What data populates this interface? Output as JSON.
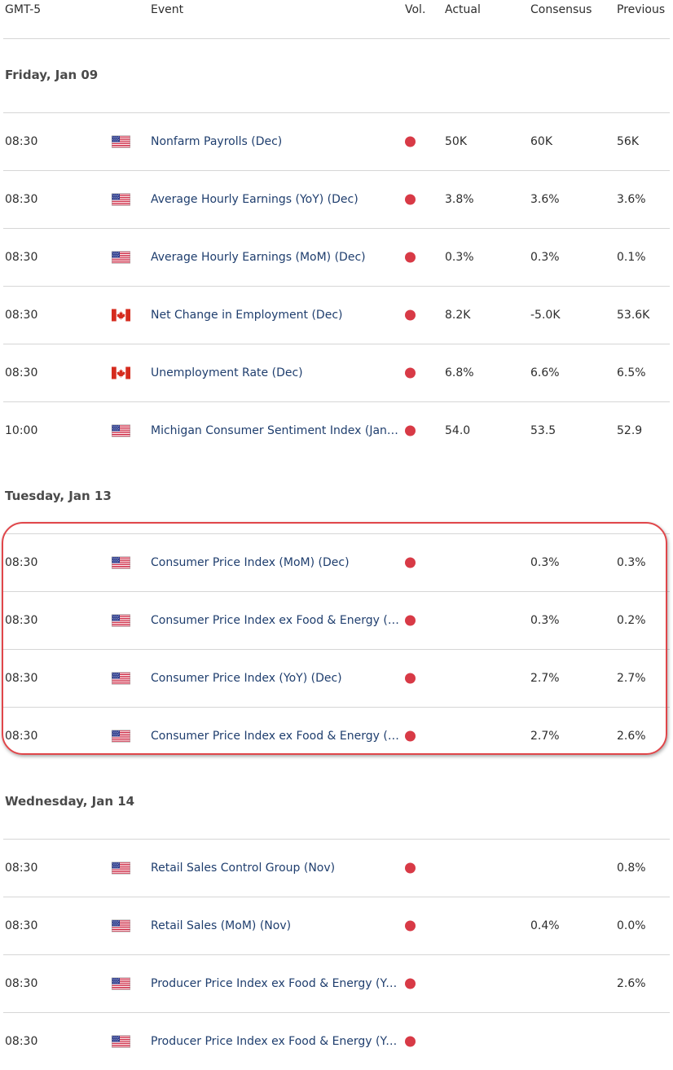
{
  "header": {
    "timezone": "GMT-5",
    "event": "Event",
    "vol": "Vol.",
    "actual": "Actual",
    "consensus": "Consensus",
    "previous": "Previous"
  },
  "colors": {
    "dot": "#d83a46",
    "event_link": "#1f3e6e",
    "highlight": "#e0464a"
  },
  "days": [
    {
      "label": "Friday, Jan 09",
      "rows": [
        {
          "time": "08:30",
          "flag": "us-flag-icon",
          "event": "Nonfarm Payrolls (Dec)",
          "actual": "50K",
          "consensus": "60K",
          "previous": "56K"
        },
        {
          "time": "08:30",
          "flag": "us-flag-icon",
          "event": "Average Hourly Earnings (YoY) (Dec)",
          "actual": "3.8%",
          "consensus": "3.6%",
          "previous": "3.6%"
        },
        {
          "time": "08:30",
          "flag": "us-flag-icon",
          "event": "Average Hourly Earnings (MoM) (Dec)",
          "actual": "0.3%",
          "consensus": "0.3%",
          "previous": "0.1%"
        },
        {
          "time": "08:30",
          "flag": "ca-flag-icon",
          "event": "Net Change in Employment (Dec)",
          "actual": "8.2K",
          "consensus": "-5.0K",
          "previous": "53.6K"
        },
        {
          "time": "08:30",
          "flag": "ca-flag-icon",
          "event": "Unemployment Rate (Dec)",
          "actual": "6.8%",
          "consensus": "6.6%",
          "previous": "6.5%"
        },
        {
          "time": "10:00",
          "flag": "us-flag-icon",
          "event": "Michigan Consumer Sentiment Index (Jan)...",
          "actual": "54.0",
          "consensus": "53.5",
          "previous": "52.9"
        }
      ]
    },
    {
      "label": "Tuesday, Jan 13",
      "rows": [
        {
          "time": "08:30",
          "flag": "us-flag-icon",
          "event": "Consumer Price Index (MoM) (Dec)",
          "actual": "",
          "consensus": "0.3%",
          "previous": "0.3%"
        },
        {
          "time": "08:30",
          "flag": "us-flag-icon",
          "event": "Consumer Price Index ex Food & Energy (M...",
          "actual": "",
          "consensus": "0.3%",
          "previous": "0.2%"
        },
        {
          "time": "08:30",
          "flag": "us-flag-icon",
          "event": "Consumer Price Index (YoY) (Dec)",
          "actual": "",
          "consensus": "2.7%",
          "previous": "2.7%"
        },
        {
          "time": "08:30",
          "flag": "us-flag-icon",
          "event": "Consumer Price Index ex Food & Energy (Yo...",
          "actual": "",
          "consensus": "2.7%",
          "previous": "2.6%"
        }
      ]
    },
    {
      "label": "Wednesday, Jan 14",
      "rows": [
        {
          "time": "08:30",
          "flag": "us-flag-icon",
          "event": "Retail Sales Control Group (Nov)",
          "actual": "",
          "consensus": "",
          "previous": "0.8%"
        },
        {
          "time": "08:30",
          "flag": "us-flag-icon",
          "event": "Retail Sales (MoM) (Nov)",
          "actual": "",
          "consensus": "0.4%",
          "previous": "0.0%"
        },
        {
          "time": "08:30",
          "flag": "us-flag-icon",
          "event": "Producer Price Index ex Food & Energy (YoY...",
          "actual": "",
          "consensus": "",
          "previous": "2.6%"
        },
        {
          "time": "08:30",
          "flag": "us-flag-icon",
          "event": "Producer Price Index ex Food & Energy (YoY...",
          "actual": "",
          "consensus": "",
          "previous": ""
        }
      ]
    }
  ]
}
